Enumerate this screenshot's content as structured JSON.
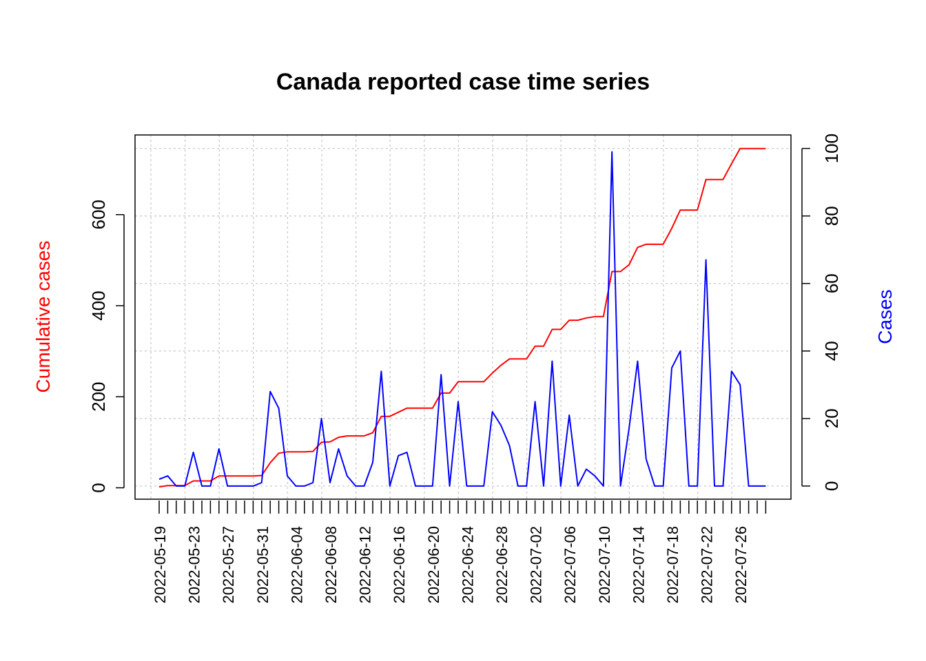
{
  "chart_data": {
    "type": "line",
    "title": "Canada reported case time series",
    "left_ylabel": "Cumulative cases",
    "right_ylabel": "Cases",
    "left_ylim": [
      -25,
      775
    ],
    "right_ylim": [
      -3.9,
      104
    ],
    "left_yticks": [
      0,
      200,
      400,
      600
    ],
    "right_yticks": [
      0,
      20,
      40,
      60,
      80,
      100
    ],
    "x_tick_labels": [
      "2022-05-19",
      "2022-05-23",
      "2022-05-27",
      "2022-05-31",
      "2022-06-04",
      "2022-06-08",
      "2022-06-12",
      "2022-06-16",
      "2022-06-20",
      "2022-06-24",
      "2022-06-28",
      "2022-07-02",
      "2022-07-06",
      "2022-07-10",
      "2022-07-14",
      "2022-07-18",
      "2022-07-22",
      "2022-07-26"
    ],
    "grid": true,
    "colors": {
      "cumulative": "#ff0000",
      "cases": "#0000ff",
      "grid": "#c8c8c8",
      "axis": "#000000"
    },
    "x": [
      "2022-05-19",
      "2022-05-20",
      "2022-05-21",
      "2022-05-22",
      "2022-05-23",
      "2022-05-24",
      "2022-05-25",
      "2022-05-26",
      "2022-05-27",
      "2022-05-28",
      "2022-05-29",
      "2022-05-30",
      "2022-05-31",
      "2022-06-01",
      "2022-06-02",
      "2022-06-03",
      "2022-06-04",
      "2022-06-05",
      "2022-06-06",
      "2022-06-07",
      "2022-06-08",
      "2022-06-09",
      "2022-06-10",
      "2022-06-11",
      "2022-06-12",
      "2022-06-13",
      "2022-06-14",
      "2022-06-15",
      "2022-06-16",
      "2022-06-17",
      "2022-06-18",
      "2022-06-19",
      "2022-06-20",
      "2022-06-21",
      "2022-06-22",
      "2022-06-23",
      "2022-06-24",
      "2022-06-25",
      "2022-06-26",
      "2022-06-27",
      "2022-06-28",
      "2022-06-29",
      "2022-06-30",
      "2022-07-01",
      "2022-07-02",
      "2022-07-03",
      "2022-07-04",
      "2022-07-05",
      "2022-07-06",
      "2022-07-07",
      "2022-07-08",
      "2022-07-09",
      "2022-07-10",
      "2022-07-11",
      "2022-07-12",
      "2022-07-13",
      "2022-07-14",
      "2022-07-15",
      "2022-07-16",
      "2022-07-17",
      "2022-07-18",
      "2022-07-19",
      "2022-07-20",
      "2022-07-21",
      "2022-07-22",
      "2022-07-23",
      "2022-07-24",
      "2022-07-25",
      "2022-07-26",
      "2022-07-27",
      "2022-07-28",
      "2022-07-29"
    ],
    "series": [
      {
        "name": "Cumulative cases",
        "axis": "left",
        "values": [
          2,
          5,
          5,
          5,
          15,
          15,
          15,
          26,
          26,
          26,
          26,
          26,
          27,
          55,
          76,
          79,
          79,
          79,
          80,
          100,
          101,
          111,
          114,
          114,
          114,
          121,
          157,
          157,
          166,
          175,
          175,
          175,
          175,
          208,
          208,
          233,
          233,
          233,
          233,
          252,
          269,
          283,
          283,
          283,
          311,
          311,
          348,
          348,
          368,
          368,
          373,
          376,
          376,
          475,
          475,
          490,
          528,
          535,
          535,
          535,
          570,
          610,
          610,
          610,
          677,
          677,
          677,
          712,
          745,
          745,
          745,
          745
        ]
      },
      {
        "name": "Cases",
        "axis": "right",
        "values": [
          2,
          3,
          0,
          0,
          10,
          0,
          0,
          11,
          0,
          0,
          0,
          0,
          1,
          28,
          23,
          3,
          0,
          0,
          1,
          20,
          1,
          11,
          3,
          0,
          0,
          7,
          34,
          0,
          9,
          10,
          0,
          0,
          0,
          33,
          0,
          25,
          0,
          0,
          0,
          22,
          18,
          12,
          0,
          0,
          25,
          0,
          37,
          0,
          21,
          0,
          5,
          3,
          0,
          99,
          0,
          17,
          37,
          8,
          0,
          0,
          35,
          40,
          0,
          0,
          67,
          0,
          0,
          34,
          30,
          0,
          0,
          0
        ]
      }
    ]
  }
}
